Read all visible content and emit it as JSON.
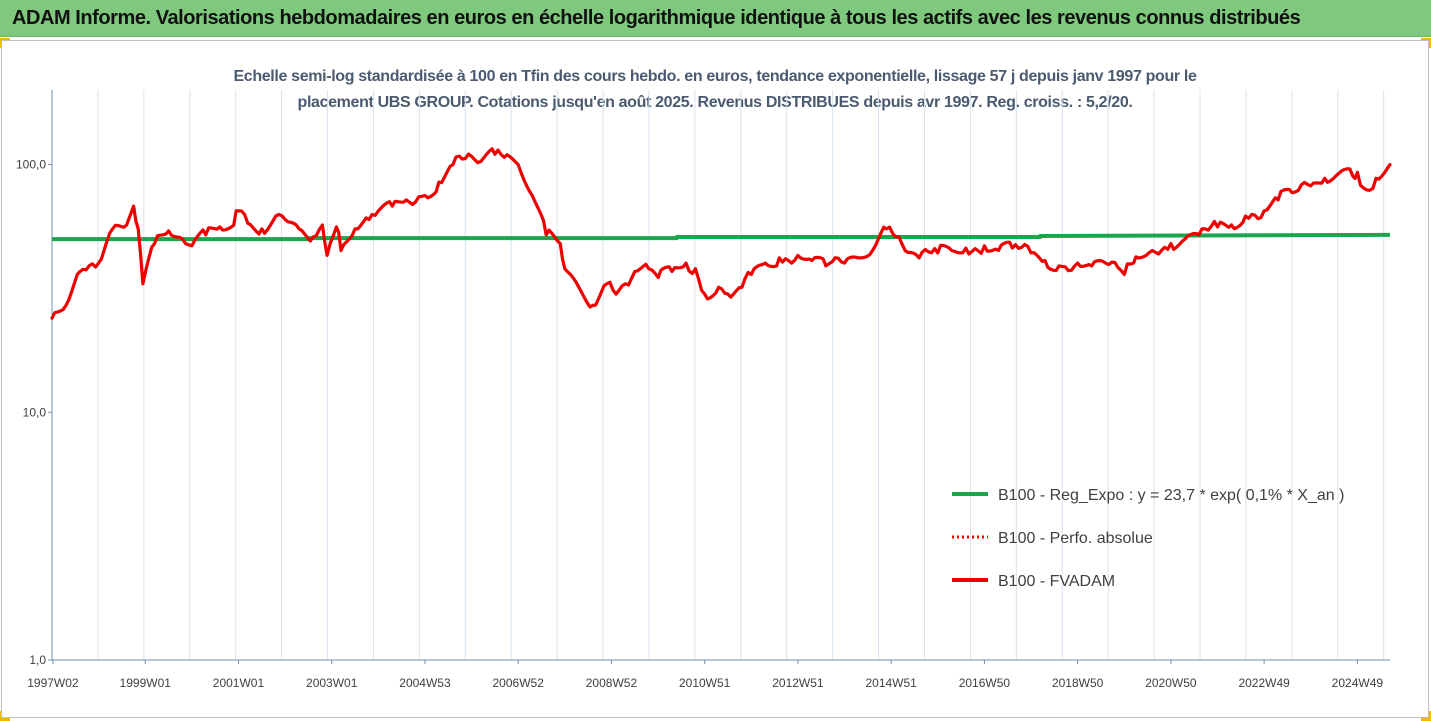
{
  "header": {
    "title": "ADAM Informe. Valorisations hebdomadaires en euros en échelle logarithmique identique à tous les actifs avec les revenus connus distribués"
  },
  "colors": {
    "header_bg": "#7fc97f",
    "corner_marker": "#f5b800",
    "regression_line": "#1aa64a",
    "fvadam_line": "#ee0000",
    "perfo_line": "#ee0000",
    "grid": "#d6e4f0",
    "axis": "#6f8fb0"
  },
  "chart_data": {
    "type": "line",
    "title": "Echelle semi-log standardisée à 100 en Tfin des cours hebdo. en euros, tendance exponentielle, lissage 57 j depuis janv 1997 pour le placement UBS GROUP. Cotations jusqu'en août 2025. Revenus DISTRIBUES depuis avr 1997. Reg. croiss. : 5,2/20.",
    "title_lines": [
      "Echelle semi-log standardisée à 100 en Tfin des cours hebdo. en euros, tendance exponentielle, lissage 57 j depuis janv 1997 pour le",
      "placement UBS GROUP. Cotations jusqu'en août 2025. Revenus DISTRIBUES depuis avr 1997. Reg. croiss. : 5,2/20."
    ],
    "y_scale": "log",
    "ylim": [
      1,
      200
    ],
    "xlim": [
      1997.0,
      2025.7
    ],
    "y_ticks": [
      {
        "value": 1,
        "label": "1,0"
      },
      {
        "value": 10,
        "label": "10,0"
      },
      {
        "value": 100,
        "label": "100,0"
      }
    ],
    "x_ticks": [
      {
        "value": 1997.02,
        "label": "1997W02"
      },
      {
        "value": 1999.0,
        "label": "1999W01"
      },
      {
        "value": 2001.0,
        "label": "2001W01"
      },
      {
        "value": 2003.0,
        "label": "2003W01"
      },
      {
        "value": 2005.0,
        "label": "2004W53"
      },
      {
        "value": 2007.0,
        "label": "2006W52"
      },
      {
        "value": 2009.0,
        "label": "2008W52"
      },
      {
        "value": 2011.0,
        "label": "2010W51"
      },
      {
        "value": 2013.0,
        "label": "2012W51"
      },
      {
        "value": 2015.0,
        "label": "2014W51"
      },
      {
        "value": 2017.0,
        "label": "2016W50"
      },
      {
        "value": 2019.0,
        "label": "2018W50"
      },
      {
        "value": 2021.0,
        "label": "2020W50"
      },
      {
        "value": 2023.0,
        "label": "2022W49"
      },
      {
        "value": 2025.0,
        "label": "2024W49"
      }
    ],
    "grid": "vertical",
    "legend_position": "right",
    "series": [
      {
        "name": "B100 - Reg_Expo : y = 23,7 * exp( 0,1% *  X_an )",
        "style": "solid-thick",
        "color": "#1aa64a",
        "x": [
          1997.0,
          2002.5,
          2002.5,
          2010.4,
          2010.4,
          2018.2,
          2018.2,
          2025.7
        ],
        "y": [
          50.0,
          50.0,
          50.5,
          50.5,
          51.0,
          51.0,
          51.5,
          52.0
        ]
      },
      {
        "name": "B100 - Perfo. absolue",
        "style": "dotted",
        "color": "#ee0000",
        "x": [],
        "y": []
      },
      {
        "name": "B100 - FVADAM",
        "style": "solid-thick",
        "color": "#ee0000",
        "x": [
          1997.0,
          1997.3,
          1997.6,
          1998.0,
          1998.3,
          1998.6,
          1998.75,
          1998.85,
          1998.95,
          1999.2,
          1999.5,
          1999.8,
          2000.0,
          2000.3,
          2000.6,
          2000.9,
          2001.0,
          2001.2,
          2001.5,
          2001.8,
          2002.0,
          2002.3,
          2002.6,
          2002.8,
          2002.9,
          2003.1,
          2003.2,
          2003.5,
          2003.8,
          2004.0,
          2004.3,
          2004.6,
          2005.0,
          2005.3,
          2005.6,
          2006.0,
          2006.2,
          2006.5,
          2006.7,
          2007.0,
          2007.3,
          2007.6,
          2007.9,
          2008.0,
          2008.3,
          2008.6,
          2008.9,
          2009.1,
          2009.3,
          2009.5,
          2009.8,
          2010.0,
          2010.3,
          2010.6,
          2010.8,
          2011.0,
          2011.3,
          2011.5,
          2011.8,
          2012.0,
          2012.3,
          2012.6,
          2013.0,
          2013.3,
          2013.6,
          2014.0,
          2014.3,
          2014.6,
          2014.9,
          2015.1,
          2015.3,
          2015.6,
          2016.0,
          2016.3,
          2016.6,
          2017.0,
          2017.3,
          2017.6,
          2018.0,
          2018.3,
          2018.6,
          2019.0,
          2019.3,
          2019.6,
          2020.0,
          2020.2,
          2020.3,
          2020.6,
          2021.0,
          2021.3,
          2021.6,
          2022.0,
          2022.3,
          2022.6,
          2023.0,
          2023.3,
          2023.6,
          2024.0,
          2024.3,
          2024.6,
          2024.9,
          2025.0,
          2025.2,
          2025.4,
          2025.7
        ],
        "y": [
          24,
          27,
          37,
          40,
          55,
          57,
          68,
          55,
          33,
          48,
          54,
          50,
          47,
          52,
          56,
          57,
          65,
          58,
          55,
          62,
          60,
          55,
          51,
          57,
          43,
          56,
          45,
          55,
          60,
          65,
          68,
          72,
          75,
          85,
          100,
          108,
          103,
          110,
          107,
          100,
          75,
          52,
          48,
          38,
          32,
          27,
          33,
          30,
          33,
          37,
          38,
          35,
          37,
          40,
          38,
          30,
          32,
          30,
          32,
          36,
          40,
          42,
          43,
          41,
          39,
          40,
          42,
          45,
          55,
          51,
          45,
          42,
          44,
          45,
          46,
          47,
          45,
          46,
          44,
          41,
          39,
          40,
          39,
          40,
          36,
          40,
          42,
          45,
          48,
          50,
          52,
          56,
          57,
          62,
          65,
          72,
          77,
          82,
          88,
          92,
          90,
          93,
          79,
          88,
          100
        ]
      }
    ]
  }
}
